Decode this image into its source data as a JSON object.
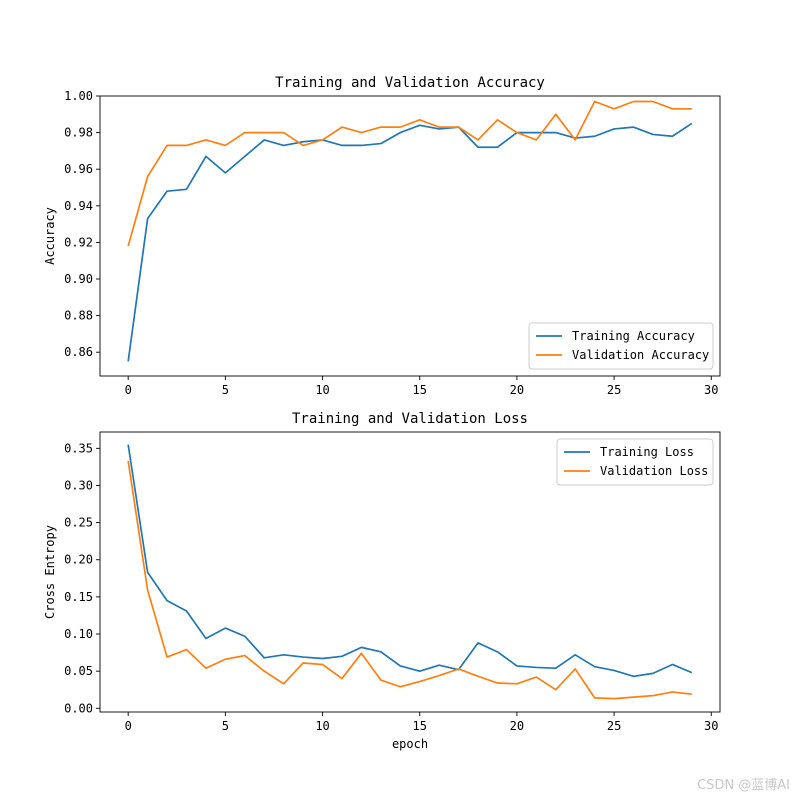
{
  "watermark": "CSDN @蓝博AI",
  "colors": {
    "training": "#1f77b4",
    "validation": "#ff7f0e"
  },
  "chart_data": [
    {
      "type": "line",
      "title": "Training and Validation Accuracy",
      "xlabel": "",
      "ylabel": "Accuracy",
      "xlim": [
        -1.45,
        30.45
      ],
      "ylim": [
        0.847,
        1.0
      ],
      "xticks": [
        0,
        5,
        10,
        15,
        20,
        25,
        30
      ],
      "yticks": [
        0.86,
        0.88,
        0.9,
        0.92,
        0.94,
        0.96,
        0.98,
        1.0
      ],
      "ytick_decimals": 2,
      "legend_position": "lower-right",
      "x": [
        0,
        1,
        2,
        3,
        4,
        5,
        6,
        7,
        8,
        9,
        10,
        11,
        12,
        13,
        14,
        15,
        16,
        17,
        18,
        19,
        20,
        21,
        22,
        23,
        24,
        25,
        26,
        27,
        28,
        29
      ],
      "series": [
        {
          "name": "Training Accuracy",
          "color": "#1f77b4",
          "values": [
            0.855,
            0.933,
            0.948,
            0.949,
            0.967,
            0.958,
            0.967,
            0.976,
            0.973,
            0.975,
            0.976,
            0.973,
            0.973,
            0.974,
            0.98,
            0.984,
            0.982,
            0.983,
            0.972,
            0.972,
            0.98,
            0.98,
            0.98,
            0.977,
            0.978,
            0.982,
            0.983,
            0.979,
            0.978,
            0.985
          ]
        },
        {
          "name": "Validation Accuracy",
          "color": "#ff7f0e",
          "values": [
            0.918,
            0.956,
            0.973,
            0.973,
            0.976,
            0.973,
            0.98,
            0.98,
            0.98,
            0.973,
            0.976,
            0.983,
            0.98,
            0.983,
            0.983,
            0.987,
            0.983,
            0.983,
            0.976,
            0.987,
            0.98,
            0.976,
            0.99,
            0.976,
            0.997,
            0.993,
            0.997,
            0.997,
            0.993,
            0.993
          ]
        }
      ]
    },
    {
      "type": "line",
      "title": "Training and Validation Loss",
      "xlabel": "epoch",
      "ylabel": "Cross Entropy",
      "xlim": [
        -1.45,
        30.45
      ],
      "ylim": [
        -0.005,
        0.372
      ],
      "xticks": [
        0,
        5,
        10,
        15,
        20,
        25,
        30
      ],
      "yticks": [
        0.0,
        0.05,
        0.1,
        0.15,
        0.2,
        0.25,
        0.3,
        0.35
      ],
      "ytick_decimals": 2,
      "legend_position": "upper-right",
      "x": [
        0,
        1,
        2,
        3,
        4,
        5,
        6,
        7,
        8,
        9,
        10,
        11,
        12,
        13,
        14,
        15,
        16,
        17,
        18,
        19,
        20,
        21,
        22,
        23,
        24,
        25,
        26,
        27,
        28,
        29
      ],
      "series": [
        {
          "name": "Training Loss",
          "color": "#1f77b4",
          "values": [
            0.355,
            0.183,
            0.145,
            0.131,
            0.094,
            0.108,
            0.097,
            0.068,
            0.072,
            0.069,
            0.067,
            0.07,
            0.082,
            0.076,
            0.057,
            0.05,
            0.058,
            0.052,
            0.088,
            0.076,
            0.057,
            0.055,
            0.054,
            0.072,
            0.056,
            0.051,
            0.043,
            0.047,
            0.059,
            0.048
          ]
        },
        {
          "name": "Validation Loss",
          "color": "#ff7f0e",
          "values": [
            0.333,
            0.159,
            0.069,
            0.079,
            0.054,
            0.066,
            0.071,
            0.05,
            0.033,
            0.061,
            0.059,
            0.04,
            0.074,
            0.038,
            0.029,
            0.036,
            0.044,
            0.053,
            0.043,
            0.034,
            0.033,
            0.042,
            0.025,
            0.053,
            0.014,
            0.013,
            0.015,
            0.017,
            0.022,
            0.019
          ]
        }
      ]
    }
  ]
}
